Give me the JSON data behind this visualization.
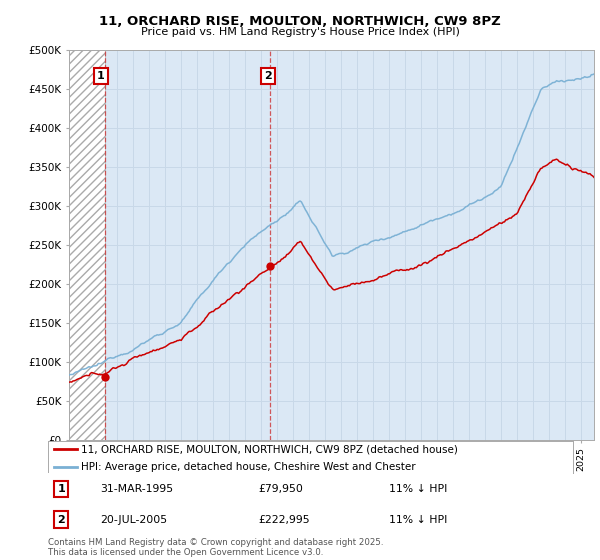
{
  "title": "11, ORCHARD RISE, MOULTON, NORTHWICH, CW9 8PZ",
  "subtitle": "Price paid vs. HM Land Registry's House Price Index (HPI)",
  "ylim": [
    0,
    500000
  ],
  "yticks": [
    0,
    50000,
    100000,
    150000,
    200000,
    250000,
    300000,
    350000,
    400000,
    450000,
    500000
  ],
  "ytick_labels": [
    "£0",
    "£50K",
    "£100K",
    "£150K",
    "£200K",
    "£250K",
    "£300K",
    "£350K",
    "£400K",
    "£450K",
    "£500K"
  ],
  "xlim_start": 1993.0,
  "xlim_end": 2025.83,
  "sale1_x": 1995.25,
  "sale1_y": 79950,
  "sale2_x": 2005.55,
  "sale2_y": 222995,
  "sale_color": "#cc0000",
  "hpi_color": "#7ab0d4",
  "light_blue_bg": "#dbe8f5",
  "grid_color": "#c8d8e8",
  "legend1_label": "11, ORCHARD RISE, MOULTON, NORTHWICH, CW9 8PZ (detached house)",
  "legend2_label": "HPI: Average price, detached house, Cheshire West and Chester",
  "note1_date": "31-MAR-1995",
  "note1_price": "£79,950",
  "note1_hpi": "11% ↓ HPI",
  "note2_date": "20-JUL-2005",
  "note2_price": "£222,995",
  "note2_hpi": "11% ↓ HPI",
  "footer": "Contains HM Land Registry data © Crown copyright and database right 2025.\nThis data is licensed under the Open Government Licence v3.0."
}
